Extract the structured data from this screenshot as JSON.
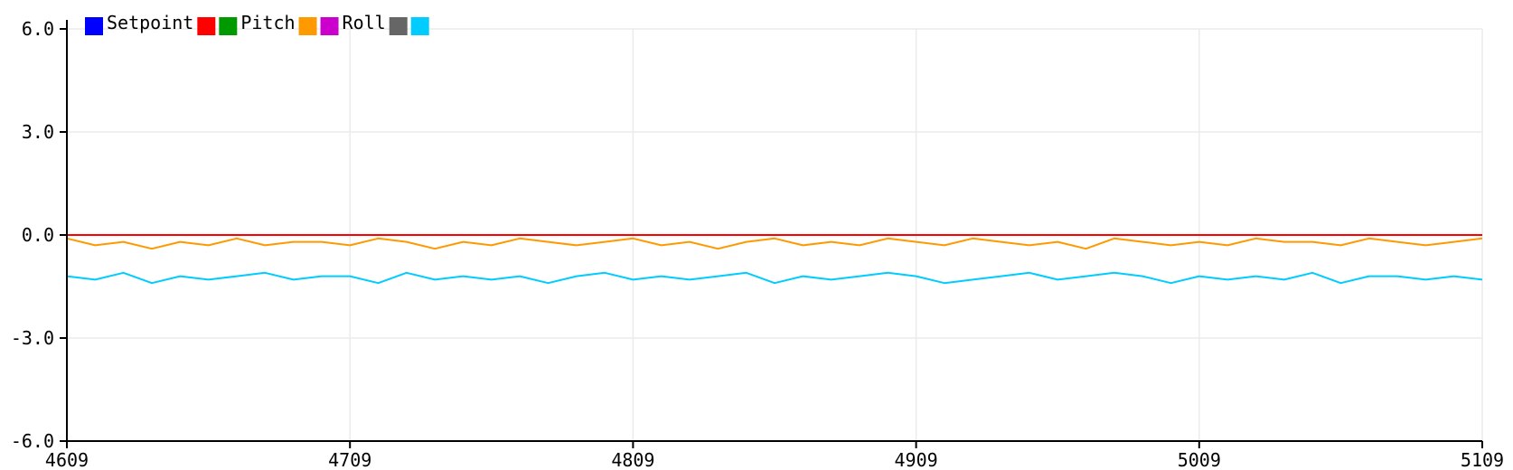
{
  "chart_data": {
    "type": "line",
    "xlim": [
      4609,
      5109
    ],
    "ylim": [
      -6.0,
      6.0
    ],
    "x_ticks": [
      "4609",
      "4709",
      "4809",
      "4909",
      "5009",
      "5109"
    ],
    "y_ticks": [
      "6.0",
      "3.0",
      "0.0",
      "-3.0",
      "-6.0"
    ],
    "grid": true,
    "legend": [
      {
        "label": "Setpoint",
        "color": "#0000ff"
      },
      {
        "label": "",
        "color": "#ff0000"
      },
      {
        "label": "Pitch",
        "color": "#009900"
      },
      {
        "label": "",
        "color": "#ff9900"
      },
      {
        "label": "Roll",
        "color": "#cc00cc"
      },
      {
        "label": "",
        "color": "#666666"
      },
      {
        "label": "",
        "color": "#00ccff"
      }
    ],
    "series": [
      {
        "color": "#0000ff",
        "x": [
          4609,
          5109
        ],
        "y": [
          0.0,
          0.0
        ]
      },
      {
        "color": "#ff0000",
        "x": [
          4609,
          5109
        ],
        "y": [
          0.0,
          0.0
        ]
      },
      {
        "color": "#ff9900",
        "x": [
          4609,
          4619,
          4629,
          4639,
          4649,
          4659,
          4669,
          4679,
          4689,
          4699,
          4709,
          4719,
          4729,
          4739,
          4749,
          4759,
          4769,
          4779,
          4789,
          4799,
          4809,
          4819,
          4829,
          4839,
          4849,
          4859,
          4869,
          4879,
          4889,
          4899,
          4909,
          4919,
          4929,
          4939,
          4949,
          4959,
          4969,
          4979,
          4989,
          4999,
          5009,
          5019,
          5029,
          5039,
          5049,
          5059,
          5069,
          5079,
          5089,
          5099,
          5109
        ],
        "y": [
          -0.1,
          -0.3,
          -0.2,
          -0.4,
          -0.2,
          -0.3,
          -0.1,
          -0.3,
          -0.2,
          -0.2,
          -0.3,
          -0.1,
          -0.2,
          -0.4,
          -0.2,
          -0.3,
          -0.1,
          -0.2,
          -0.3,
          -0.2,
          -0.1,
          -0.3,
          -0.2,
          -0.4,
          -0.2,
          -0.1,
          -0.3,
          -0.2,
          -0.3,
          -0.1,
          -0.2,
          -0.3,
          -0.1,
          -0.2,
          -0.3,
          -0.2,
          -0.4,
          -0.1,
          -0.2,
          -0.3,
          -0.2,
          -0.3,
          -0.1,
          -0.2,
          -0.2,
          -0.3,
          -0.1,
          -0.2,
          -0.3,
          -0.2,
          -0.1
        ]
      },
      {
        "color": "#00ccff",
        "x": [
          4609,
          4619,
          4629,
          4639,
          4649,
          4659,
          4669,
          4679,
          4689,
          4699,
          4709,
          4719,
          4729,
          4739,
          4749,
          4759,
          4769,
          4779,
          4789,
          4799,
          4809,
          4819,
          4829,
          4839,
          4849,
          4859,
          4869,
          4879,
          4889,
          4899,
          4909,
          4919,
          4929,
          4939,
          4949,
          4959,
          4969,
          4979,
          4989,
          4999,
          5009,
          5019,
          5029,
          5039,
          5049,
          5059,
          5069,
          5079,
          5089,
          5099,
          5109
        ],
        "y": [
          -1.2,
          -1.3,
          -1.1,
          -1.4,
          -1.2,
          -1.3,
          -1.2,
          -1.1,
          -1.3,
          -1.2,
          -1.2,
          -1.4,
          -1.1,
          -1.3,
          -1.2,
          -1.3,
          -1.2,
          -1.4,
          -1.2,
          -1.1,
          -1.3,
          -1.2,
          -1.3,
          -1.2,
          -1.1,
          -1.4,
          -1.2,
          -1.3,
          -1.2,
          -1.1,
          -1.2,
          -1.4,
          -1.3,
          -1.2,
          -1.1,
          -1.3,
          -1.2,
          -1.1,
          -1.2,
          -1.4,
          -1.2,
          -1.3,
          -1.2,
          -1.3,
          -1.1,
          -1.4,
          -1.2,
          -1.2,
          -1.3,
          -1.2,
          -1.3
        ]
      }
    ]
  }
}
